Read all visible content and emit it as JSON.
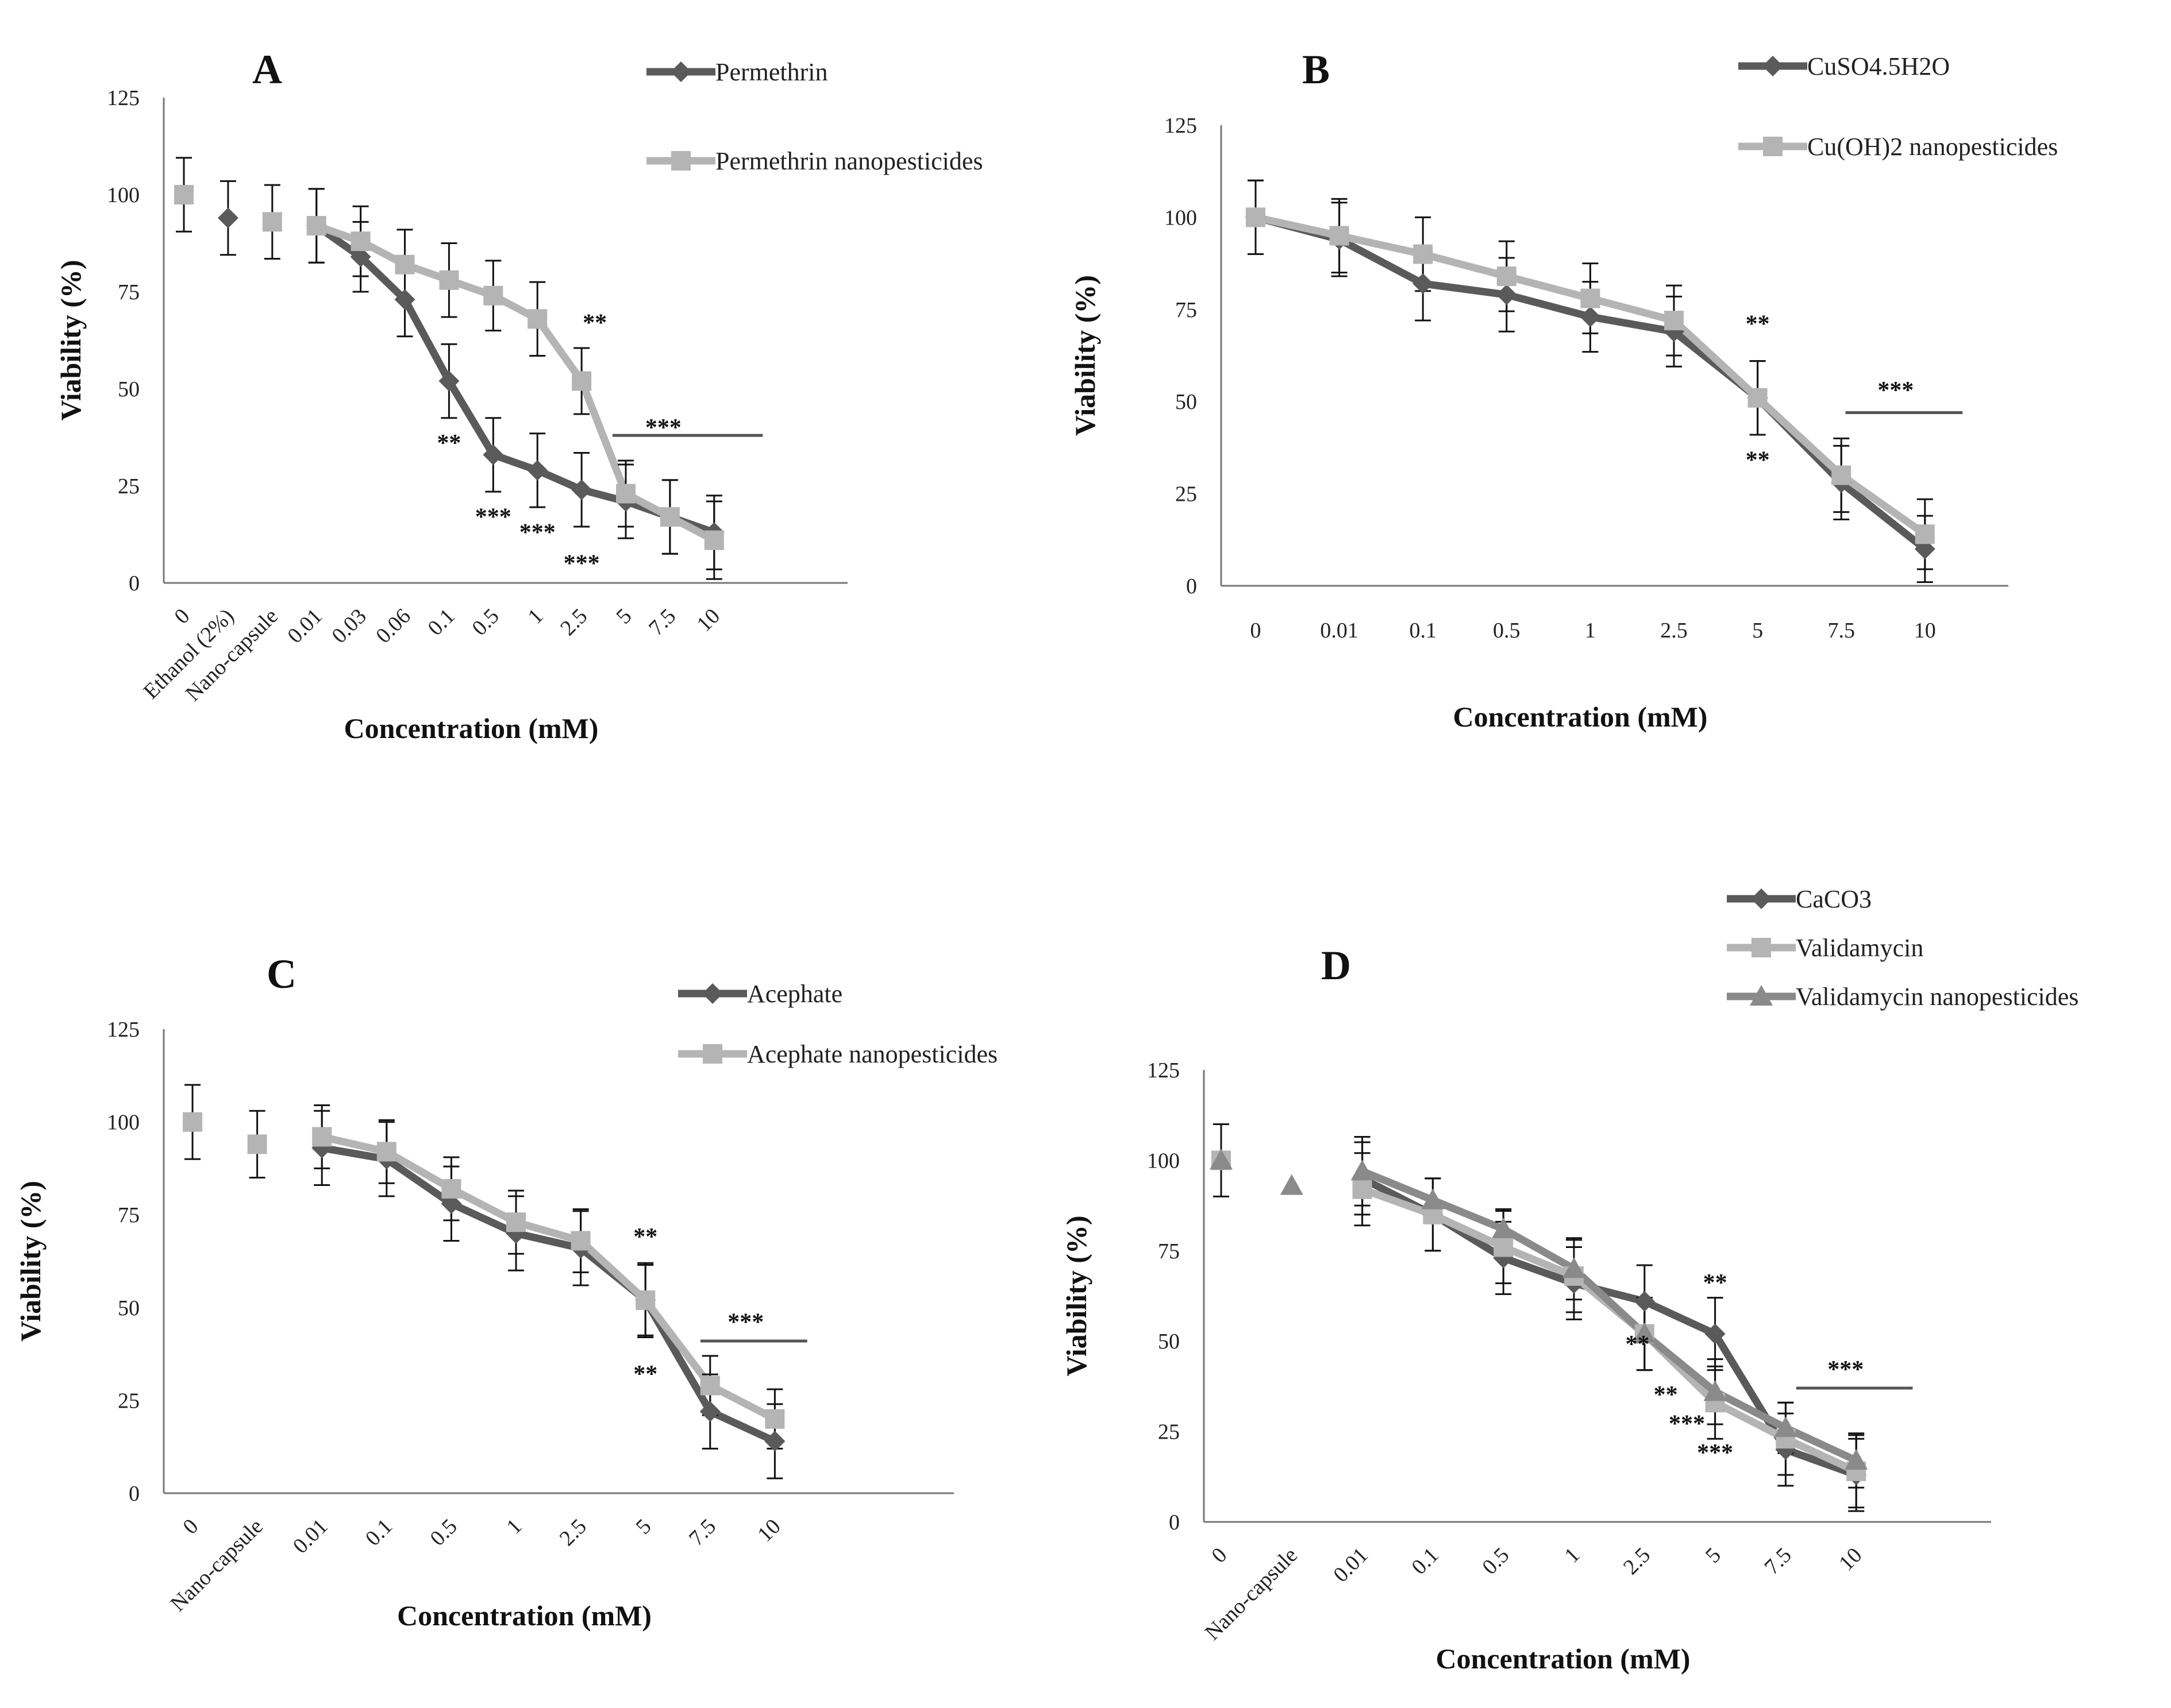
{
  "chart_data": [
    {
      "type": "line",
      "panel": "A",
      "title": "A",
      "xlabel": "Concentration  (mM)",
      "ylabel": "Viability  (%)",
      "ylim": [
        0,
        125
      ],
      "yticks": [
        0,
        25,
        50,
        75,
        100,
        125
      ],
      "categories": [
        "0",
        "Ethanol (2%)",
        "Nano-capsule",
        "0.01",
        "0.03",
        "0.06",
        "0.1",
        "0.5",
        "1",
        "2.5",
        "5",
        "7.5",
        "10"
      ],
      "colors": {
        "series1": "#5a5a5a",
        "series2": "#b4b4b4"
      },
      "series": [
        {
          "name": "Permethrin",
          "marker": "diamond",
          "points": [
            {
              "x": 1,
              "y": 94,
              "err": 9.5,
              "connected": false
            },
            {
              "x": 3,
              "y": 92,
              "err": 9.5
            },
            {
              "x": 4,
              "y": 84,
              "err": 9
            },
            {
              "x": 5,
              "y": 73,
              "err": 9.5
            },
            {
              "x": 6,
              "y": 52,
              "err": 9.5
            },
            {
              "x": 7,
              "y": 33,
              "err": 9.5
            },
            {
              "x": 8,
              "y": 29,
              "err": 9.5
            },
            {
              "x": 9,
              "y": 24,
              "err": 9.5
            },
            {
              "x": 10,
              "y": 21,
              "err": 9.5
            },
            {
              "x": 11,
              "y": 17,
              "err": 9.5
            },
            {
              "x": 12,
              "y": 13,
              "err": 9.5
            }
          ]
        },
        {
          "name": "Permethrin nanopesticides",
          "marker": "square",
          "points": [
            {
              "x": 0,
              "y": 100,
              "err": 9.5,
              "connected": false
            },
            {
              "x": 2,
              "y": 93,
              "err": 9.5,
              "connected": false
            },
            {
              "x": 3,
              "y": 92,
              "err": 9.5
            },
            {
              "x": 4,
              "y": 88,
              "err": 9
            },
            {
              "x": 5,
              "y": 82,
              "err": 9
            },
            {
              "x": 6,
              "y": 78,
              "err": 9.5
            },
            {
              "x": 7,
              "y": 74,
              "err": 9
            },
            {
              "x": 8,
              "y": 68,
              "err": 9.5
            },
            {
              "x": 9,
              "y": 52,
              "err": 8.5
            },
            {
              "x": 10,
              "y": 23,
              "err": 8.5
            },
            {
              "x": 11,
              "y": 17,
              "err": 9.5
            },
            {
              "x": 12,
              "y": 11,
              "err": 10
            }
          ]
        }
      ],
      "annotations": [
        {
          "text": "**",
          "x": 6,
          "y": 34
        },
        {
          "text": "***",
          "x": 7,
          "y": 15
        },
        {
          "text": "***",
          "x": 8,
          "y": 11
        },
        {
          "text": "***",
          "x": 9,
          "y": 3
        },
        {
          "text": "**",
          "x": 9.3,
          "y": 65
        },
        {
          "text": "***",
          "x": 10.85,
          "y": 38
        }
      ],
      "sig_line": {
        "x_from": 9.7,
        "x_to": 13.1,
        "y": 38
      }
    },
    {
      "type": "line",
      "panel": "B",
      "title": "B",
      "xlabel": "Concentration  (mM)",
      "ylabel": "Viability  (%)",
      "ylim": [
        0,
        125
      ],
      "yticks": [
        0,
        25,
        50,
        75,
        100,
        125
      ],
      "categories": [
        "0",
        "0.01",
        "0.1",
        "0.5",
        "1",
        "2.5",
        "5",
        "7.5",
        "10"
      ],
      "colors": {
        "series1": "#5a5a5a",
        "series2": "#b4b4b4"
      },
      "series": [
        {
          "name": "CuSO4.5H2O",
          "marker": "diamond",
          "points": [
            {
              "x": 0,
              "y": 100,
              "err": 10
            },
            {
              "x": 1,
              "y": 94,
              "err": 10
            },
            {
              "x": 2,
              "y": 82,
              "err": 10
            },
            {
              "x": 3,
              "y": 79,
              "err": 10
            },
            {
              "x": 4,
              "y": 73,
              "err": 9.5
            },
            {
              "x": 5,
              "y": 69,
              "err": 9.5
            },
            {
              "x": 6,
              "y": 51,
              "err": 10
            },
            {
              "x": 7,
              "y": 28,
              "err": 10
            },
            {
              "x": 8,
              "y": 10,
              "err": 9
            }
          ]
        },
        {
          "name": "Cu(OH)2 nanopesticides",
          "marker": "square",
          "points": [
            {
              "x": 0,
              "y": 100,
              "err": 10
            },
            {
              "x": 1,
              "y": 95,
              "err": 10
            },
            {
              "x": 2,
              "y": 90,
              "err": 10
            },
            {
              "x": 3,
              "y": 84,
              "err": 9.5
            },
            {
              "x": 4,
              "y": 78,
              "err": 9.5
            },
            {
              "x": 5,
              "y": 72,
              "err": 9.5
            },
            {
              "x": 6,
              "y": 51,
              "err": 10
            },
            {
              "x": 7,
              "y": 30,
              "err": 10
            },
            {
              "x": 8,
              "y": 14,
              "err": 9.5
            }
          ]
        }
      ],
      "annotations": [
        {
          "text": "**",
          "x": 6,
          "y": 69
        },
        {
          "text": "**",
          "x": 6,
          "y": 32
        },
        {
          "text": "***",
          "x": 7.65,
          "y": 51
        }
      ],
      "sig_line": {
        "x_from": 7.05,
        "x_to": 8.45,
        "y": 47
      }
    },
    {
      "type": "line",
      "panel": "C",
      "title": "C",
      "xlabel": "Concentration  (mM)",
      "ylabel": "Viability  (%)",
      "ylim": [
        0,
        125
      ],
      "yticks": [
        0,
        25,
        50,
        75,
        100,
        125
      ],
      "categories": [
        "0",
        "Nano-capsule",
        "0.01",
        "0.1",
        "0.5",
        "1",
        "2.5",
        "5",
        "7.5",
        "10"
      ],
      "colors": {
        "series1": "#5a5a5a",
        "series2": "#b4b4b4"
      },
      "series": [
        {
          "name": "Acephate",
          "marker": "diamond",
          "points": [
            {
              "x": 2,
              "y": 93,
              "err": 10
            },
            {
              "x": 3,
              "y": 90,
              "err": 10
            },
            {
              "x": 4,
              "y": 78,
              "err": 10
            },
            {
              "x": 5,
              "y": 70,
              "err": 10
            },
            {
              "x": 6,
              "y": 66,
              "err": 10
            },
            {
              "x": 7,
              "y": 52,
              "err": 10
            },
            {
              "x": 8,
              "y": 22,
              "err": 10
            },
            {
              "x": 9,
              "y": 14,
              "err": 10
            }
          ]
        },
        {
          "name": "Acephate nanopesticides",
          "marker": "square",
          "points": [
            {
              "x": 0,
              "y": 100,
              "err": 10,
              "connected": false
            },
            {
              "x": 1,
              "y": 94,
              "err": 9,
              "connected": false
            },
            {
              "x": 2,
              "y": 96,
              "err": 8.5
            },
            {
              "x": 3,
              "y": 92,
              "err": 8.5
            },
            {
              "x": 4,
              "y": 82,
              "err": 8.5
            },
            {
              "x": 5,
              "y": 73,
              "err": 8.5
            },
            {
              "x": 6,
              "y": 68,
              "err": 8.5
            },
            {
              "x": 7,
              "y": 52,
              "err": 9.5
            },
            {
              "x": 8,
              "y": 29,
              "err": 8
            },
            {
              "x": 9,
              "y": 20,
              "err": 8
            }
          ]
        }
      ],
      "annotations": [
        {
          "text": "**",
          "x": 7,
          "y": 67
        },
        {
          "text": "**",
          "x": 7,
          "y": 30
        },
        {
          "text": "***",
          "x": 8.55,
          "y": 44
        }
      ],
      "sig_line": {
        "x_from": 7.85,
        "x_to": 9.5,
        "y": 41
      }
    },
    {
      "type": "line",
      "panel": "D",
      "title": "D",
      "xlabel": "Concentration  (mM)",
      "ylabel": "Viability  (%)",
      "ylim": [
        0,
        125
      ],
      "yticks": [
        0,
        25,
        50,
        75,
        100,
        125
      ],
      "categories": [
        "0",
        "Nano-capsule",
        "0.01",
        "0.1",
        "0.5",
        "1",
        "2.5",
        "5",
        "7.5",
        "10"
      ],
      "colors": {
        "series1": "#5a5a5a",
        "series2": "#b4b4b4",
        "series3": "#8a8a8a"
      },
      "series": [
        {
          "name": "CaCO3",
          "marker": "diamond",
          "points": [
            {
              "x": 2,
              "y": 95,
              "err": 10
            },
            {
              "x": 3,
              "y": 85,
              "err": 10
            },
            {
              "x": 4,
              "y": 73,
              "err": 10
            },
            {
              "x": 5,
              "y": 66,
              "err": 10
            },
            {
              "x": 6,
              "y": 61,
              "err": 10
            },
            {
              "x": 7,
              "y": 52,
              "err": 10
            },
            {
              "x": 8,
              "y": 20,
              "err": 10
            },
            {
              "x": 9,
              "y": 13,
              "err": 10
            }
          ]
        },
        {
          "name": "Validamycin",
          "marker": "square",
          "points": [
            {
              "x": 0,
              "y": 100,
              "err": 10,
              "connected": false
            },
            {
              "x": 2,
              "y": 92,
              "err": 10
            },
            {
              "x": 3,
              "y": 85,
              "err": 10
            },
            {
              "x": 4,
              "y": 76,
              "err": 10
            },
            {
              "x": 5,
              "y": 68,
              "err": 10
            },
            {
              "x": 6,
              "y": 52,
              "err": 10
            },
            {
              "x": 7,
              "y": 33,
              "err": 10
            },
            {
              "x": 8,
              "y": 23,
              "err": 10
            },
            {
              "x": 9,
              "y": 14,
              "err": 10
            }
          ]
        },
        {
          "name": "Validamycin nanopesticides",
          "marker": "triangle",
          "points": [
            {
              "x": 0,
              "y": 100,
              "err": 0,
              "connected": false
            },
            {
              "x": 1,
              "y": 93,
              "err": 0,
              "connected": false
            },
            {
              "x": 2,
              "y": 97,
              "err": 9.5
            },
            {
              "x": 3,
              "y": 89,
              "err": 6
            },
            {
              "x": 4,
              "y": 81,
              "err": 5.5
            },
            {
              "x": 5,
              "y": 70,
              "err": 8.5
            },
            {
              "x": 6,
              "y": 52,
              "err": 10
            },
            {
              "x": 7,
              "y": 36,
              "err": 9
            },
            {
              "x": 8,
              "y": 26,
              "err": 7
            },
            {
              "x": 9,
              "y": 17,
              "err": 7.5
            }
          ]
        }
      ],
      "annotations": [
        {
          "text": "**",
          "x": 7,
          "y": 64
        },
        {
          "text": "**",
          "x": 5.9,
          "y": 47
        },
        {
          "text": "**",
          "x": 6.3,
          "y": 33
        },
        {
          "text": "***",
          "x": 6.6,
          "y": 25
        },
        {
          "text": "***",
          "x": 7,
          "y": 17
        },
        {
          "text": "***",
          "x": 8.85,
          "y": 40
        }
      ],
      "sig_line": {
        "x_from": 8.15,
        "x_to": 9.8,
        "y": 37
      }
    }
  ]
}
